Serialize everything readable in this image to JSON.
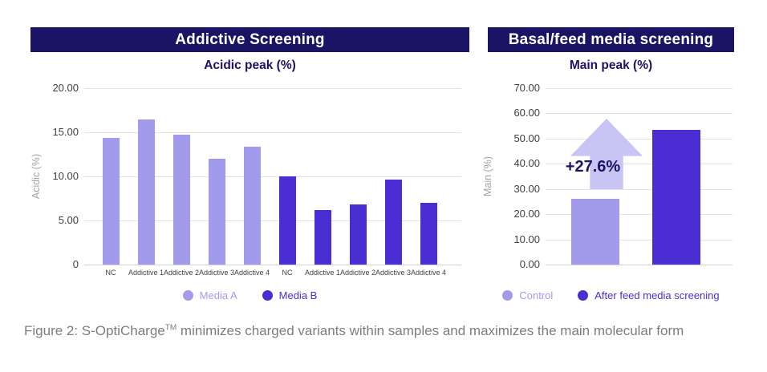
{
  "colors": {
    "banner_bg": "#1a1464",
    "banner_text": "#ffffff",
    "subtitle_text": "#1a1464",
    "media_a": "#a29bec",
    "media_b": "#4a2ed3",
    "arrow_fill": "#c8c5f4",
    "annotation_text": "#1a1464",
    "gridline": "#e4e4e8",
    "tick_text": "#404040",
    "axis_title_text": "#a3a3a3",
    "caption_text": "#7d7d7d"
  },
  "caption": {
    "prefix": "Figure 2: S-OptiCharge",
    "trademark": "TM",
    "rest": " minimizes charged variants within samples and maximizes the main molecular form"
  },
  "chart_data": [
    {
      "type": "bar",
      "title": "Addictive Screening",
      "subtitle": "Acidic peak (%)",
      "ylabel": "Acidic (%)",
      "xlabel": "",
      "ylim": [
        0,
        20
      ],
      "grid": true,
      "legend_position": "bottom",
      "yticks": [
        {
          "label": "20.00",
          "value": 20
        },
        {
          "label": "15.00",
          "value": 15
        },
        {
          "label": "10.00",
          "value": 10
        },
        {
          "label": "5.00",
          "value": 5
        },
        {
          "label": "0",
          "value": 0
        }
      ],
      "legend": [
        {
          "label": "Media A",
          "color": "#a29bec"
        },
        {
          "label": "Media B",
          "color": "#4a2ed3"
        }
      ],
      "bars": [
        {
          "category": "NC",
          "series": "Media A",
          "value": 14.4
        },
        {
          "category": "Addictive 1",
          "series": "Media A",
          "value": 16.5
        },
        {
          "category": "Addictive 2",
          "series": "Media A",
          "value": 14.7
        },
        {
          "category": "Addictive 3",
          "series": "Media A",
          "value": 12.0
        },
        {
          "category": "Addictive 4",
          "series": "Media A",
          "value": 13.4
        },
        {
          "category": "NC",
          "series": "Media B",
          "value": 10.0
        },
        {
          "category": "Addictive 1",
          "series": "Media B",
          "value": 6.2
        },
        {
          "category": "Addictive 2",
          "series": "Media B",
          "value": 6.8
        },
        {
          "category": "Addictive 3",
          "series": "Media B",
          "value": 9.6
        },
        {
          "category": "Addictive 4",
          "series": "Media B",
          "value": 7.0
        }
      ]
    },
    {
      "type": "bar",
      "title": "Basal/feed media screening",
      "subtitle": "Main peak (%)",
      "ylabel": "Main (%)",
      "xlabel": "",
      "ylim": [
        0,
        70
      ],
      "grid": true,
      "legend_position": "bottom",
      "yticks": [
        {
          "label": "70.00",
          "value": 70
        },
        {
          "label": "60.00",
          "value": 60
        },
        {
          "label": "50.00",
          "value": 50
        },
        {
          "label": "40.00",
          "value": 40
        },
        {
          "label": "30.00",
          "value": 30
        },
        {
          "label": "20.00",
          "value": 20
        },
        {
          "label": "10.00",
          "value": 10
        },
        {
          "label": "0.00",
          "value": 0
        }
      ],
      "legend": [
        {
          "label": "Control",
          "color": "#a29bec"
        },
        {
          "label": "After feed media screening",
          "color": "#4a2ed3"
        }
      ],
      "bars": [
        {
          "category": "Control",
          "series": "Control",
          "value": 26.0
        },
        {
          "category": "After feed media screening",
          "series": "After feed media screening",
          "value": 53.6
        }
      ],
      "annotation": {
        "text": "+27.6%"
      }
    }
  ]
}
